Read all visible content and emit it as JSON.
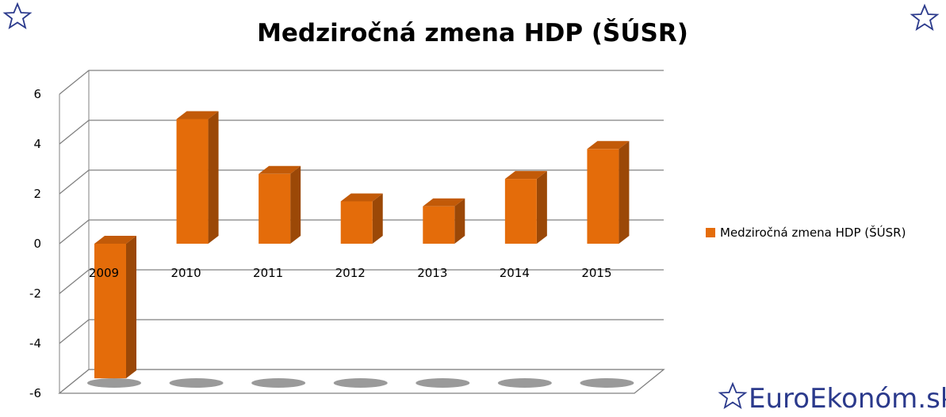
{
  "colors": {
    "bar_front": "#E46C0A",
    "bar_side": "#9B4807",
    "bar_top": "#C25A08",
    "grid": "#808080",
    "brand": "#2B3A8C"
  },
  "icons": [
    "star-icon",
    "star-icon",
    "star-icon"
  ],
  "brand": {
    "text": "EuroEkonóm.sk"
  },
  "chart_data": {
    "type": "bar",
    "title": "Medziročná zmena HDP (ŠÚSR)",
    "xlabel": "",
    "ylabel": "",
    "categories": [
      "2009",
      "2010",
      "2011",
      "2012",
      "2013",
      "2014",
      "2015"
    ],
    "series": [
      {
        "name": "Medziročná zmena HDP (ŠÚSR)",
        "values": [
          -5.4,
          5.0,
          2.8,
          1.7,
          1.5,
          2.6,
          3.8
        ]
      }
    ],
    "ylim": [
      -6,
      6
    ],
    "yticks": [
      "-6",
      "-4",
      "-2",
      "0",
      "2",
      "4",
      "6"
    ],
    "grid": true,
    "legend_position": "right",
    "three_d": true
  }
}
